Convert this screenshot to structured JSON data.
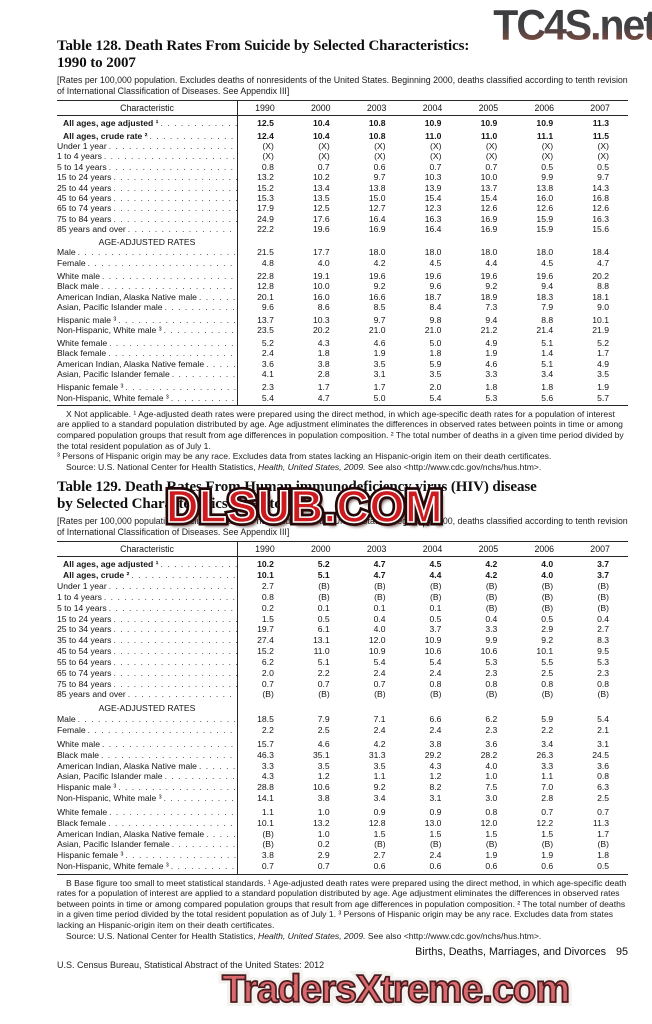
{
  "watermarks": {
    "top": {
      "text": "TC4S.net",
      "color_top": "#3e3e40",
      "color_bottom": "#96655a"
    },
    "middle": {
      "text": "DLSUB.COM",
      "fill": "#cd1a1f",
      "outline": "#240707"
    },
    "bottom": {
      "text": "TradersXtreme.com",
      "fill": "#d9696d",
      "outline": "#4a1d20"
    }
  },
  "table128": {
    "title_line1": "Table 128. Death Rates From Suicide by Selected Characteristics:",
    "title_line2": "1990 to 2007",
    "bracket_note": "[Rates per 100,000 population. Excludes deaths of nonresidents of the United States. Beginning 2000, deaths classified according to tenth revision of International Classification of Diseases. See Appendix III]",
    "columns": [
      "Characteristic",
      "1990",
      "2000",
      "2003",
      "2004",
      "2005",
      "2006",
      "2007"
    ],
    "rows": [
      {
        "label": "All ages, age adjusted ¹",
        "bold": true,
        "values": [
          "12.5",
          "10.4",
          "10.8",
          "10.9",
          "10.9",
          "10.9",
          "11.3"
        ]
      },
      {
        "label": "All ages, crude rate ²",
        "bold": true,
        "gap": true,
        "values": [
          "12.4",
          "10.4",
          "10.8",
          "11.0",
          "11.0",
          "11.1",
          "11.5"
        ]
      },
      {
        "label": "Under 1 year",
        "values": [
          "(X)",
          "(X)",
          "(X)",
          "(X)",
          "(X)",
          "(X)",
          "(X)"
        ]
      },
      {
        "label": "1 to 4 years",
        "values": [
          "(X)",
          "(X)",
          "(X)",
          "(X)",
          "(X)",
          "(X)",
          "(X)"
        ]
      },
      {
        "label": "5 to 14 years",
        "values": [
          "0.8",
          "0.7",
          "0.6",
          "0.7",
          "0.7",
          "0.5",
          "0.5"
        ]
      },
      {
        "label": "15 to 24 years",
        "values": [
          "13.2",
          "10.2",
          "9.7",
          "10.3",
          "10.0",
          "9.9",
          "9.7"
        ]
      },
      {
        "label": "25 to 44 years",
        "values": [
          "15.2",
          "13.4",
          "13.8",
          "13.9",
          "13.7",
          "13.8",
          "14.3"
        ]
      },
      {
        "label": "45 to 64 years",
        "values": [
          "15.3",
          "13.5",
          "15.0",
          "15.4",
          "15.4",
          "16.0",
          "16.8"
        ]
      },
      {
        "label": "65 to 74 years",
        "values": [
          "17.9",
          "12.5",
          "12.7",
          "12.3",
          "12.6",
          "12.6",
          "12.6"
        ]
      },
      {
        "label": "75 to 84 years",
        "values": [
          "24.9",
          "17.6",
          "16.4",
          "16.3",
          "16.9",
          "15.9",
          "16.3"
        ]
      },
      {
        "label": "85 years and over",
        "values": [
          "22.2",
          "19.6",
          "16.9",
          "16.4",
          "16.9",
          "15.9",
          "15.6"
        ]
      },
      {
        "section": "AGE-ADJUSTED RATES",
        "gap": true
      },
      {
        "label": "Male",
        "values": [
          "21.5",
          "17.7",
          "18.0",
          "18.0",
          "18.0",
          "18.0",
          "18.4"
        ]
      },
      {
        "label": "Female",
        "values": [
          "4.8",
          "4.0",
          "4.2",
          "4.5",
          "4.4",
          "4.5",
          "4.7"
        ]
      },
      {
        "label": "White male",
        "gap": true,
        "values": [
          "22.8",
          "19.1",
          "19.6",
          "19.6",
          "19.6",
          "19.6",
          "20.2"
        ]
      },
      {
        "label": "Black male",
        "values": [
          "12.8",
          "10.0",
          "9.2",
          "9.6",
          "9.2",
          "9.4",
          "8.8"
        ]
      },
      {
        "label": "American Indian, Alaska Native male",
        "values": [
          "20.1",
          "16.0",
          "16.6",
          "18.7",
          "18.9",
          "18.3",
          "18.1"
        ]
      },
      {
        "label": "Asian, Pacific Islander male",
        "values": [
          "9.6",
          "8.6",
          "8.5",
          "8.4",
          "7.3",
          "7.9",
          "9.0"
        ]
      },
      {
        "label": "Hispanic male ³",
        "gap": true,
        "values": [
          "13.7",
          "10.3",
          "9.7",
          "9.8",
          "9.4",
          "8.8",
          "10.1"
        ]
      },
      {
        "label": "Non-Hispanic, White male ³",
        "values": [
          "23.5",
          "20.2",
          "21.0",
          "21.0",
          "21.2",
          "21.4",
          "21.9"
        ]
      },
      {
        "label": "White female",
        "gap": true,
        "values": [
          "5.2",
          "4.3",
          "4.6",
          "5.0",
          "4.9",
          "5.1",
          "5.2"
        ]
      },
      {
        "label": "Black female",
        "values": [
          "2.4",
          "1.8",
          "1.9",
          "1.8",
          "1.9",
          "1.4",
          "1.7"
        ]
      },
      {
        "label": "American Indian, Alaska Native female",
        "values": [
          "3.6",
          "3.8",
          "3.5",
          "5.9",
          "4.6",
          "5.1",
          "4.9"
        ]
      },
      {
        "label": "Asian, Pacific Islander female",
        "values": [
          "4.1",
          "2.8",
          "3.1",
          "3.5",
          "3.3",
          "3.4",
          "3.5"
        ]
      },
      {
        "label": "Hispanic female ³",
        "gap": true,
        "values": [
          "2.3",
          "1.7",
          "1.7",
          "2.0",
          "1.8",
          "1.8",
          "1.9"
        ]
      },
      {
        "label": "Non-Hispanic, White female ³",
        "values": [
          "5.4",
          "4.7",
          "5.0",
          "5.4",
          "5.3",
          "5.6",
          "5.7"
        ]
      }
    ],
    "footnote_1": "X Not applicable. ¹ Age-adjusted death rates were prepared using the direct method, in which age-specific death rates for a population of interest are applied to a standard population distributed by age. Age adjustment eliminates the differences in observed rates between points in time or among compared population groups that result from age differences in population composition. ² The total number of deaths in a given time period divided by the total resident population as of July 1.",
    "footnote_2": "³ Persons of Hispanic origin may be any race. Excludes data from states lacking an Hispanic-origin item on their death certificates.",
    "source_prefix": "Source: U.S. National Center for Health Statistics, ",
    "source_italic": "Health, United States, 2009.",
    "source_suffix": " See also <http://www.cdc.gov/nchs/hus.htm>."
  },
  "table129": {
    "title_line1": "Table 129. Death Rates From Human immunodeficiency virus (HIV) disease",
    "title_line2": "by Selected Characteristics: 1990 to 2007",
    "bracket_note": "[Rates per 100,000 population. Excludes deaths of nonresidents of the United States. Beginning 2000, deaths classified according to tenth revision of International Classification of Diseases. See Appendix III]",
    "columns": [
      "Characteristic",
      "1990",
      "2000",
      "2003",
      "2004",
      "2005",
      "2006",
      "2007"
    ],
    "rows": [
      {
        "label": "All ages, age adjusted ¹",
        "bold": true,
        "values": [
          "10.2",
          "5.2",
          "4.7",
          "4.5",
          "4.2",
          "4.0",
          "3.7"
        ]
      },
      {
        "label": "All ages, crude ²",
        "bold": true,
        "values": [
          "10.1",
          "5.1",
          "4.7",
          "4.4",
          "4.2",
          "4.0",
          "3.7"
        ]
      },
      {
        "label": "Under 1 year",
        "values": [
          "2.7",
          "(B)",
          "(B)",
          "(B)",
          "(B)",
          "(B)",
          "(B)"
        ]
      },
      {
        "label": "1 to 4 years",
        "values": [
          "0.8",
          "(B)",
          "(B)",
          "(B)",
          "(B)",
          "(B)",
          "(B)"
        ]
      },
      {
        "label": "5 to 14 years",
        "values": [
          "0.2",
          "0.1",
          "0.1",
          "0.1",
          "(B)",
          "(B)",
          "(B)"
        ]
      },
      {
        "label": "15 to 24 years",
        "values": [
          "1.5",
          "0.5",
          "0.4",
          "0.5",
          "0.4",
          "0.5",
          "0.4"
        ]
      },
      {
        "label": "25 to 34 years",
        "values": [
          "19.7",
          "6.1",
          "4.0",
          "3.7",
          "3.3",
          "2.9",
          "2.7"
        ]
      },
      {
        "label": "35 to 44 years",
        "values": [
          "27.4",
          "13.1",
          "12.0",
          "10.9",
          "9.9",
          "9.2",
          "8.3"
        ]
      },
      {
        "label": "45 to 54 years",
        "values": [
          "15.2",
          "11.0",
          "10.9",
          "10.6",
          "10.6",
          "10.1",
          "9.5"
        ]
      },
      {
        "label": "55 to 64 years",
        "values": [
          "6.2",
          "5.1",
          "5.4",
          "5.4",
          "5.3",
          "5.5",
          "5.3"
        ]
      },
      {
        "label": "65 to 74 years",
        "values": [
          "2.0",
          "2.2",
          "2.4",
          "2.4",
          "2.3",
          "2.5",
          "2.3"
        ]
      },
      {
        "label": "75 to 84 years",
        "values": [
          "0.7",
          "0.7",
          "0.7",
          "0.8",
          "0.8",
          "0.8",
          "0.8"
        ]
      },
      {
        "label": "85 years and over",
        "values": [
          "(B)",
          "(B)",
          "(B)",
          "(B)",
          "(B)",
          "(B)",
          "(B)"
        ]
      },
      {
        "section": "AGE-ADJUSTED RATES",
        "gap": true
      },
      {
        "label": "Male",
        "values": [
          "18.5",
          "7.9",
          "7.1",
          "6.6",
          "6.2",
          "5.9",
          "5.4"
        ]
      },
      {
        "label": "Female",
        "values": [
          "2.2",
          "2.5",
          "2.4",
          "2.4",
          "2.3",
          "2.2",
          "2.1"
        ]
      },
      {
        "label": "White male",
        "gap": true,
        "values": [
          "15.7",
          "4.6",
          "4.2",
          "3.8",
          "3.6",
          "3.4",
          "3.1"
        ]
      },
      {
        "label": "Black male",
        "values": [
          "46.3",
          "35.1",
          "31.3",
          "29.2",
          "28.2",
          "26.3",
          "24.5"
        ]
      },
      {
        "label": "American Indian, Alaska Native male",
        "values": [
          "3.3",
          "3.5",
          "3.5",
          "4.3",
          "4.0",
          "3.3",
          "3.6"
        ]
      },
      {
        "label": "Asian, Pacific Islander male",
        "values": [
          "4.3",
          "1.2",
          "1.1",
          "1.2",
          "1.0",
          "1.1",
          "0.8"
        ]
      },
      {
        "label": "Hispanic male ³",
        "values": [
          "28.8",
          "10.6",
          "9.2",
          "8.2",
          "7.5",
          "7.0",
          "6.3"
        ]
      },
      {
        "label": "Non-Hispanic, White male ³",
        "values": [
          "14.1",
          "3.8",
          "3.4",
          "3.1",
          "3.0",
          "2.8",
          "2.5"
        ]
      },
      {
        "label": "White female",
        "gap": true,
        "values": [
          "1.1",
          "1.0",
          "0.9",
          "0.9",
          "0.8",
          "0.7",
          "0.7"
        ]
      },
      {
        "label": "Black female",
        "values": [
          "10.1",
          "13.2",
          "12.8",
          "13.0",
          "12.0",
          "12.2",
          "11.3"
        ]
      },
      {
        "label": "American Indian, Alaska Native female",
        "values": [
          "(B)",
          "1.0",
          "1.5",
          "1.5",
          "1.5",
          "1.5",
          "1.7"
        ]
      },
      {
        "label": "Asian, Pacific Islander female",
        "values": [
          "(B)",
          "0.2",
          "(B)",
          "(B)",
          "(B)",
          "(B)",
          "(B)"
        ]
      },
      {
        "label": "Hispanic female ³",
        "values": [
          "3.8",
          "2.9",
          "2.7",
          "2.4",
          "1.9",
          "1.9",
          "1.8"
        ]
      },
      {
        "label": "Non-Hispanic, White female ³",
        "values": [
          "0.7",
          "0.7",
          "0.6",
          "0.6",
          "0.6",
          "0.6",
          "0.5"
        ]
      }
    ],
    "footnote_1": "B Base figure too small to meet statistical standards. ¹ Age-adjusted death rates were prepared using the direct method, in which age-specific death rates for a population of interest are applied to a standard population distributed by age. Age adjustment eliminates the differences in observed rates between points in time or among compared population groups that result from age differences in population composition. ² The total number of deaths in a given time period divided by the total resident population as of July 1. ³ Persons of Hispanic origin may be any race. Excludes data from states lacking an Hispanic-origin item on their death certificates.",
    "source_prefix": "Source: U.S. National Center for Health Statistics, ",
    "source_italic": "Health, United States, 2009.",
    "source_suffix": " See also <http://www.cdc.gov/nchs/hus.htm>."
  },
  "footer": {
    "section_title": "Births, Deaths, Marriages, and Divorces",
    "page_number": "95",
    "left_line": "U.S. Census Bureau, Statistical Abstract of the United States: 2012"
  }
}
